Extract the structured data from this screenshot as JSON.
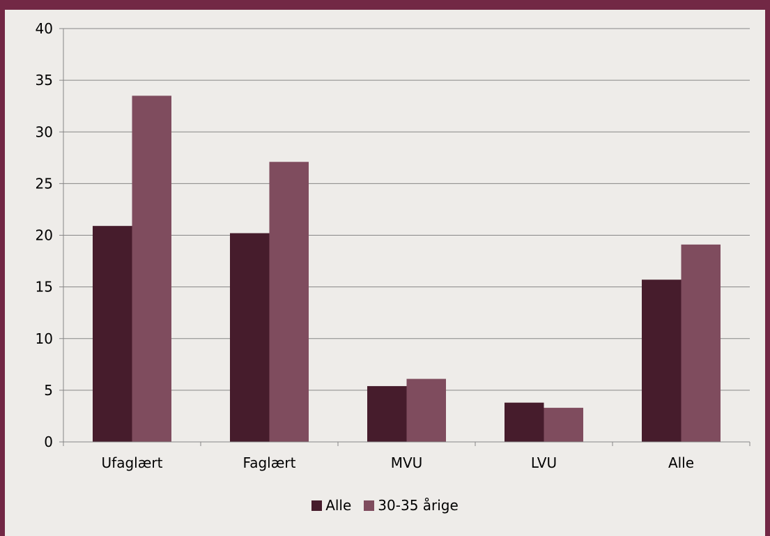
{
  "colors": {
    "frame": "#722845",
    "background": "#EEECE9",
    "gridline": "#868686",
    "axis": "#868686",
    "series_alle": "#461C2C",
    "series_30_35": "#7F4C5E"
  },
  "chart_data": {
    "type": "bar",
    "categories": [
      "Ufaglært",
      "Faglært",
      "MVU",
      "LVU",
      "Alle"
    ],
    "series": [
      {
        "name": "Alle",
        "values": [
          20.9,
          20.2,
          5.4,
          3.8,
          15.7
        ]
      },
      {
        "name": "30-35 årige",
        "values": [
          33.5,
          27.1,
          6.1,
          3.3,
          19.1
        ]
      }
    ],
    "title": "",
    "xlabel": "",
    "ylabel": "",
    "ylim": [
      0,
      40
    ],
    "yticks": [
      "0",
      "5",
      "10",
      "15",
      "20",
      "25",
      "30",
      "35",
      "40"
    ],
    "grid": true,
    "legend_position": "bottom"
  }
}
